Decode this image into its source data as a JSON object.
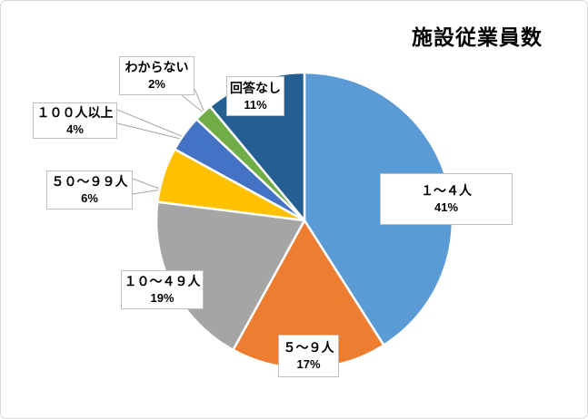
{
  "chart_data": {
    "type": "pie",
    "title": "施設従業員数",
    "categories": [
      "１～４人",
      "５～９人",
      "１０～４９人",
      "５０～９９人",
      "１００人以上",
      "わからない",
      "回答なし"
    ],
    "values": [
      41,
      17,
      19,
      6,
      4,
      2,
      11
    ],
    "value_labels": [
      "41%",
      "17%",
      "19%",
      "6%",
      "4%",
      "2%",
      "11%"
    ],
    "unit": "%",
    "colors": [
      "#5B9BD5",
      "#ED7D31",
      "#A5A5A5",
      "#FFC000",
      "#4472C4",
      "#70AD47",
      "#255E91"
    ],
    "start_angle_deg": 0,
    "direction": "clockwise",
    "legend": "none",
    "label_style": "callout-boxes-with-leader-lines",
    "leader_line_color": "#A6A6A6",
    "label_border_color": "#BFBFBF"
  }
}
